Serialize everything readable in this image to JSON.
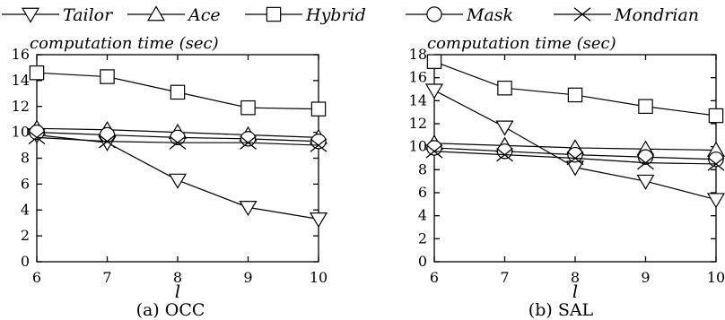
{
  "legend": [
    {
      "name": "Tailor",
      "marker": "triangle-down"
    },
    {
      "name": "Ace",
      "marker": "triangle-up"
    },
    {
      "name": "Hybrid",
      "marker": "square"
    },
    {
      "name": "Mask",
      "marker": "circle"
    },
    {
      "name": "Mondrian",
      "marker": "cross"
    }
  ],
  "chart_data": [
    {
      "type": "line",
      "caption": "(a) OCC",
      "ylabel": "computation time (sec)",
      "xlabel": "l",
      "x": [
        6,
        7,
        8,
        9,
        10
      ],
      "xlim": [
        6,
        10
      ],
      "ylim": [
        0,
        16
      ],
      "yticks": [
        0,
        2,
        4,
        6,
        8,
        10,
        12,
        14,
        16
      ],
      "grid": false,
      "series": [
        {
          "name": "Tailor",
          "marker": "triangle-down",
          "values": [
            9.8,
            9.2,
            6.3,
            4.2,
            3.3
          ]
        },
        {
          "name": "Ace",
          "marker": "triangle-up",
          "values": [
            10.3,
            10.2,
            10.0,
            9.8,
            9.6
          ]
        },
        {
          "name": "Hybrid",
          "marker": "square",
          "values": [
            14.6,
            14.3,
            13.1,
            11.9,
            11.8
          ]
        },
        {
          "name": "Mask",
          "marker": "circle",
          "values": [
            10.0,
            9.8,
            9.6,
            9.5,
            9.3
          ]
        },
        {
          "name": "Mondrian",
          "marker": "cross",
          "values": [
            9.6,
            9.3,
            9.2,
            9.2,
            9.0
          ]
        }
      ]
    },
    {
      "type": "line",
      "caption": "(b) SAL",
      "ylabel": "computation time (sec)",
      "xlabel": "l",
      "x": [
        6,
        7,
        8,
        9,
        10
      ],
      "xlim": [
        6,
        10
      ],
      "ylim": [
        0,
        18
      ],
      "yticks": [
        0,
        2,
        4,
        6,
        8,
        10,
        12,
        14,
        16,
        18
      ],
      "grid": false,
      "series": [
        {
          "name": "Tailor",
          "marker": "triangle-down",
          "values": [
            14.9,
            11.7,
            8.2,
            7.0,
            5.4
          ]
        },
        {
          "name": "Ace",
          "marker": "triangle-up",
          "values": [
            10.3,
            10.1,
            9.9,
            9.8,
            9.7
          ]
        },
        {
          "name": "Hybrid",
          "marker": "square",
          "values": [
            17.4,
            15.1,
            14.5,
            13.5,
            12.7
          ]
        },
        {
          "name": "Mask",
          "marker": "circle",
          "values": [
            9.9,
            9.6,
            9.3,
            9.1,
            8.9
          ]
        },
        {
          "name": "Mondrian",
          "marker": "cross",
          "values": [
            9.6,
            9.3,
            9.0,
            8.6,
            8.5
          ]
        }
      ]
    }
  ]
}
